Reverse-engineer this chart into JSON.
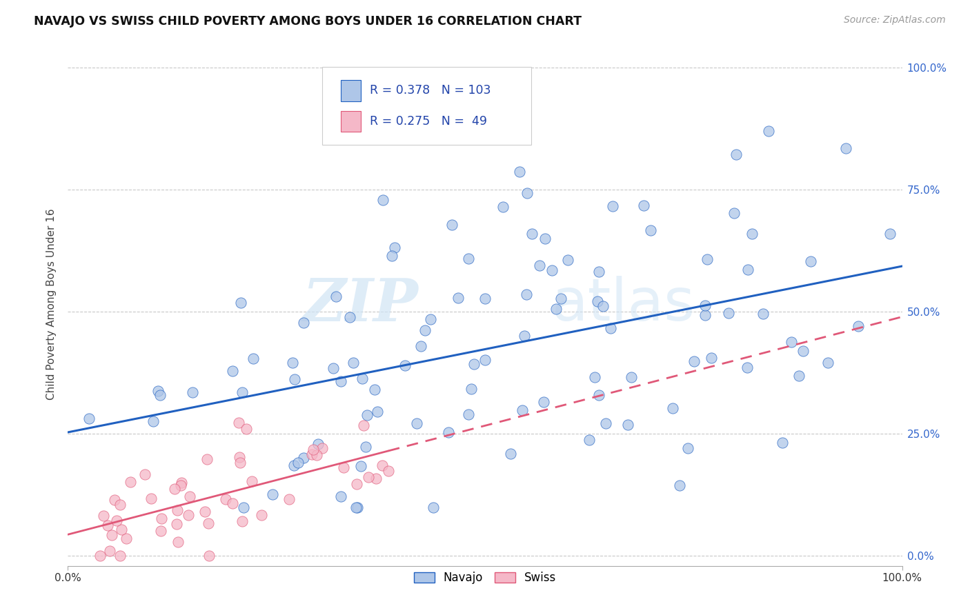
{
  "title": "NAVAJO VS SWISS CHILD POVERTY AMONG BOYS UNDER 16 CORRELATION CHART",
  "source": "Source: ZipAtlas.com",
  "ylabel": "Child Poverty Among Boys Under 16",
  "navajo_R": 0.378,
  "navajo_N": 103,
  "swiss_R": 0.275,
  "swiss_N": 49,
  "navajo_color": "#aec6e8",
  "swiss_color": "#f5b8c8",
  "navajo_line_color": "#2060c0",
  "swiss_line_color": "#e05878",
  "background_color": "#ffffff",
  "grid_color": "#c8c8c8",
  "watermark_zip": "ZIP",
  "watermark_atlas": "atlas",
  "xlim": [
    0.0,
    1.0
  ],
  "ylim": [
    -0.02,
    1.05
  ],
  "ytick_values": [
    0.0,
    0.25,
    0.5,
    0.75,
    1.0
  ],
  "navajo_seed": 42,
  "swiss_seed": 99
}
